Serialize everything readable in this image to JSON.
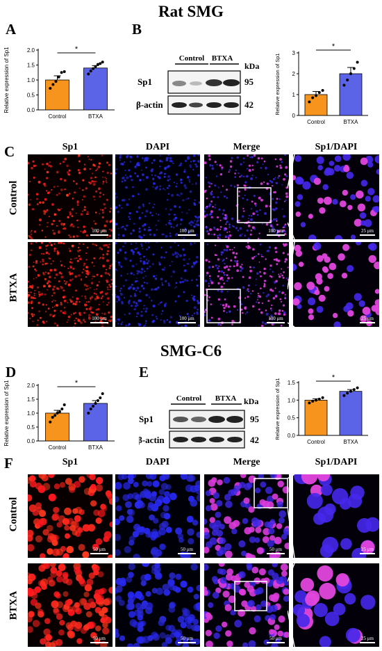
{
  "section1": {
    "title": "Rat SMG"
  },
  "section2": {
    "title": "SMG-C6"
  },
  "panels": {
    "A": "A",
    "B": "B",
    "C": "C",
    "D": "D",
    "E": "E",
    "F": "F"
  },
  "micro_columns": [
    "Sp1",
    "DAPI",
    "Merge",
    "Sp1/DAPI"
  ],
  "micro_rows": [
    "Control",
    "BTXA"
  ],
  "scale_bars": {
    "C": {
      "main": "100 μm",
      "zoom": "25 μm"
    },
    "F": {
      "main": "50 μm",
      "zoom": "25 μm"
    }
  },
  "blot": {
    "groups": [
      "Control",
      "BTXA"
    ],
    "unit": "kDa",
    "rows": [
      {
        "label": "Sp1",
        "kda": "95"
      },
      {
        "label": "β-actin",
        "kda": "42"
      }
    ]
  },
  "colors": {
    "control": "#F7941D",
    "btxa": "#5B63E6",
    "sp1": "#ff2020",
    "dapi": "#2a2aff",
    "merge": "#d43bd9"
  },
  "chart_data": [
    {
      "type": "bar",
      "panel": "A",
      "categories": [
        "Control",
        "BTXA"
      ],
      "values": [
        1.0,
        1.4
      ],
      "errors": [
        0.14,
        0.08
      ],
      "points": [
        [
          0.72,
          0.85,
          0.95,
          1.1,
          1.25,
          1.28
        ],
        [
          1.2,
          1.3,
          1.38,
          1.45,
          1.52,
          1.55,
          1.6
        ]
      ],
      "ylabel": "Relative expression of Sp1",
      "ylim": [
        0,
        2.0
      ],
      "yticks": [
        "0.0",
        "0.5",
        "1.0",
        "1.5",
        "2.0"
      ],
      "significance": "*"
    },
    {
      "type": "bar",
      "panel": "B",
      "categories": [
        "Control",
        "BTXA"
      ],
      "values": [
        1.0,
        2.0
      ],
      "errors": [
        0.15,
        0.3
      ],
      "points": [
        [
          0.65,
          0.85,
          0.95,
          1.1,
          1.2
        ],
        [
          1.45,
          1.7,
          2.0,
          2.25,
          2.55
        ]
      ],
      "ylabel": "Relative expression of Sp1",
      "ylim": [
        0,
        3
      ],
      "yticks": [
        "0",
        "1",
        "2",
        "3"
      ],
      "significance": "*"
    },
    {
      "type": "bar",
      "panel": "D",
      "categories": [
        "Control",
        "BTXA"
      ],
      "values": [
        1.0,
        1.35
      ],
      "errors": [
        0.1,
        0.1
      ],
      "points": [
        [
          0.68,
          0.85,
          0.92,
          1.0,
          1.05,
          1.15,
          1.3
        ],
        [
          1.0,
          1.15,
          1.25,
          1.35,
          1.45,
          1.55,
          1.7
        ]
      ],
      "ylabel": "Relative expression of Sp1",
      "ylim": [
        0,
        2.0
      ],
      "yticks": [
        "0.0",
        "0.5",
        "1.0",
        "1.5",
        "2.0"
      ],
      "significance": "*"
    },
    {
      "type": "bar",
      "panel": "E",
      "categories": [
        "Control",
        "BTXA"
      ],
      "values": [
        1.0,
        1.25
      ],
      "errors": [
        0.04,
        0.05
      ],
      "points": [
        [
          0.92,
          0.97,
          1.0,
          1.03,
          1.07
        ],
        [
          1.13,
          1.2,
          1.25,
          1.3,
          1.35
        ]
      ],
      "ylabel": "Relative expression of Sp1",
      "ylim": [
        0,
        1.5
      ],
      "yticks": [
        "0.0",
        "0.5",
        "1.0",
        "1.5"
      ],
      "significance": "*"
    }
  ]
}
